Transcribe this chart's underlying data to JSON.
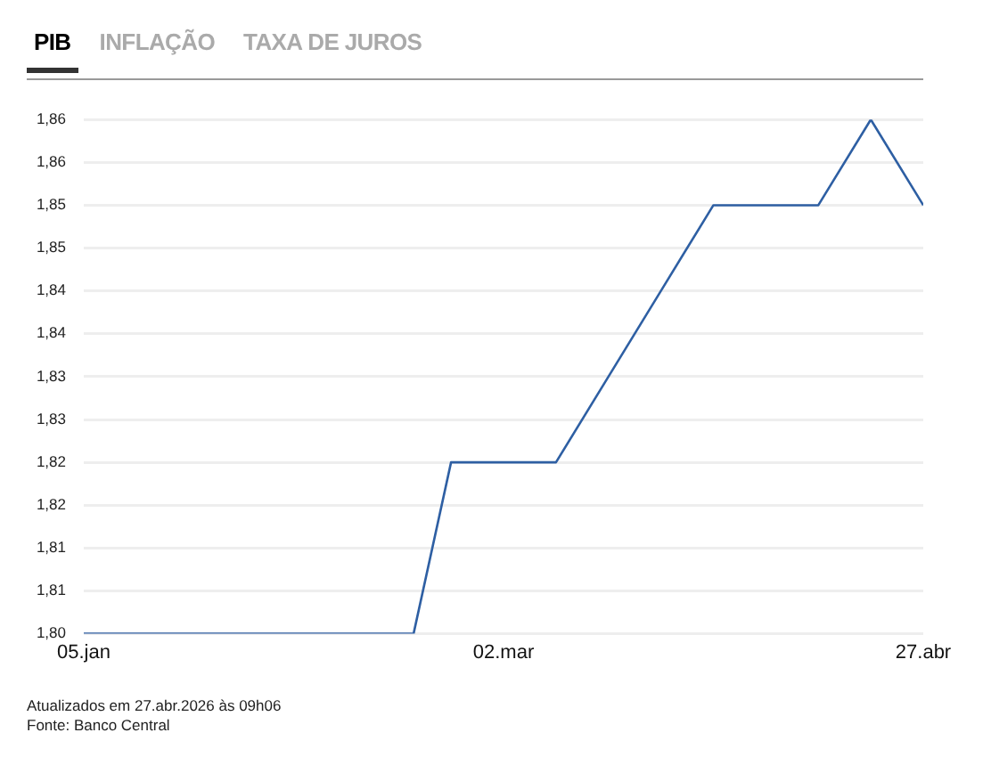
{
  "chart_data": {
    "type": "line",
    "title": "PIB",
    "annotations": [
      "INFLAÇÃO",
      "TAXA DE JUROS",
      "Atualizados em 27.abr.2026 às 09h06",
      "Fonte: Banco Central"
    ],
    "x": [
      "2026-01-05",
      "2026-01-12",
      "2026-01-19",
      "2026-01-26",
      "2026-02-02",
      "2026-02-09",
      "2026-02-18",
      "2026-02-23",
      "2026-03-02",
      "2026-03-09",
      "2026-03-16",
      "2026-03-23",
      "2026-03-30",
      "2026-04-06",
      "2026-04-13",
      "2026-04-20",
      "2026-04-27"
    ],
    "series": [
      {
        "color": "#2e5fa3",
        "values": [
          1.8,
          1.8,
          1.8,
          1.8,
          1.8,
          1.8,
          1.8,
          1.82,
          1.82,
          1.82,
          1.83,
          1.84,
          1.85,
          1.85,
          1.85,
          1.86,
          1.85
        ]
      }
    ],
    "xlim": [
      "2026-01-05",
      "2026-04-27"
    ],
    "xticks": [
      {
        "value": "2026-01-05",
        "label": "05.jan"
      },
      {
        "value": "2026-03-02",
        "label": "02.mar"
      },
      {
        "value": "2026-04-27",
        "label": "27.abr"
      }
    ],
    "ylim": [
      1.8,
      1.86
    ],
    "yticks": [
      {
        "value": 1.8,
        "label": "1,80"
      },
      {
        "value": 1.805,
        "label": "1,81"
      },
      {
        "value": 1.81,
        "label": "1,81"
      },
      {
        "value": 1.815,
        "label": "1,82"
      },
      {
        "value": 1.82,
        "label": "1,82"
      },
      {
        "value": 1.825,
        "label": "1,83"
      },
      {
        "value": 1.83,
        "label": "1,83"
      },
      {
        "value": 1.835,
        "label": "1,84"
      },
      {
        "value": 1.84,
        "label": "1,84"
      },
      {
        "value": 1.845,
        "label": "1,85"
      },
      {
        "value": 1.85,
        "label": "1,85"
      },
      {
        "value": 1.855,
        "label": "1,86"
      },
      {
        "value": 1.86,
        "label": "1,86"
      }
    ],
    "grid": "y",
    "legend": false,
    "line_style": "solid"
  }
}
